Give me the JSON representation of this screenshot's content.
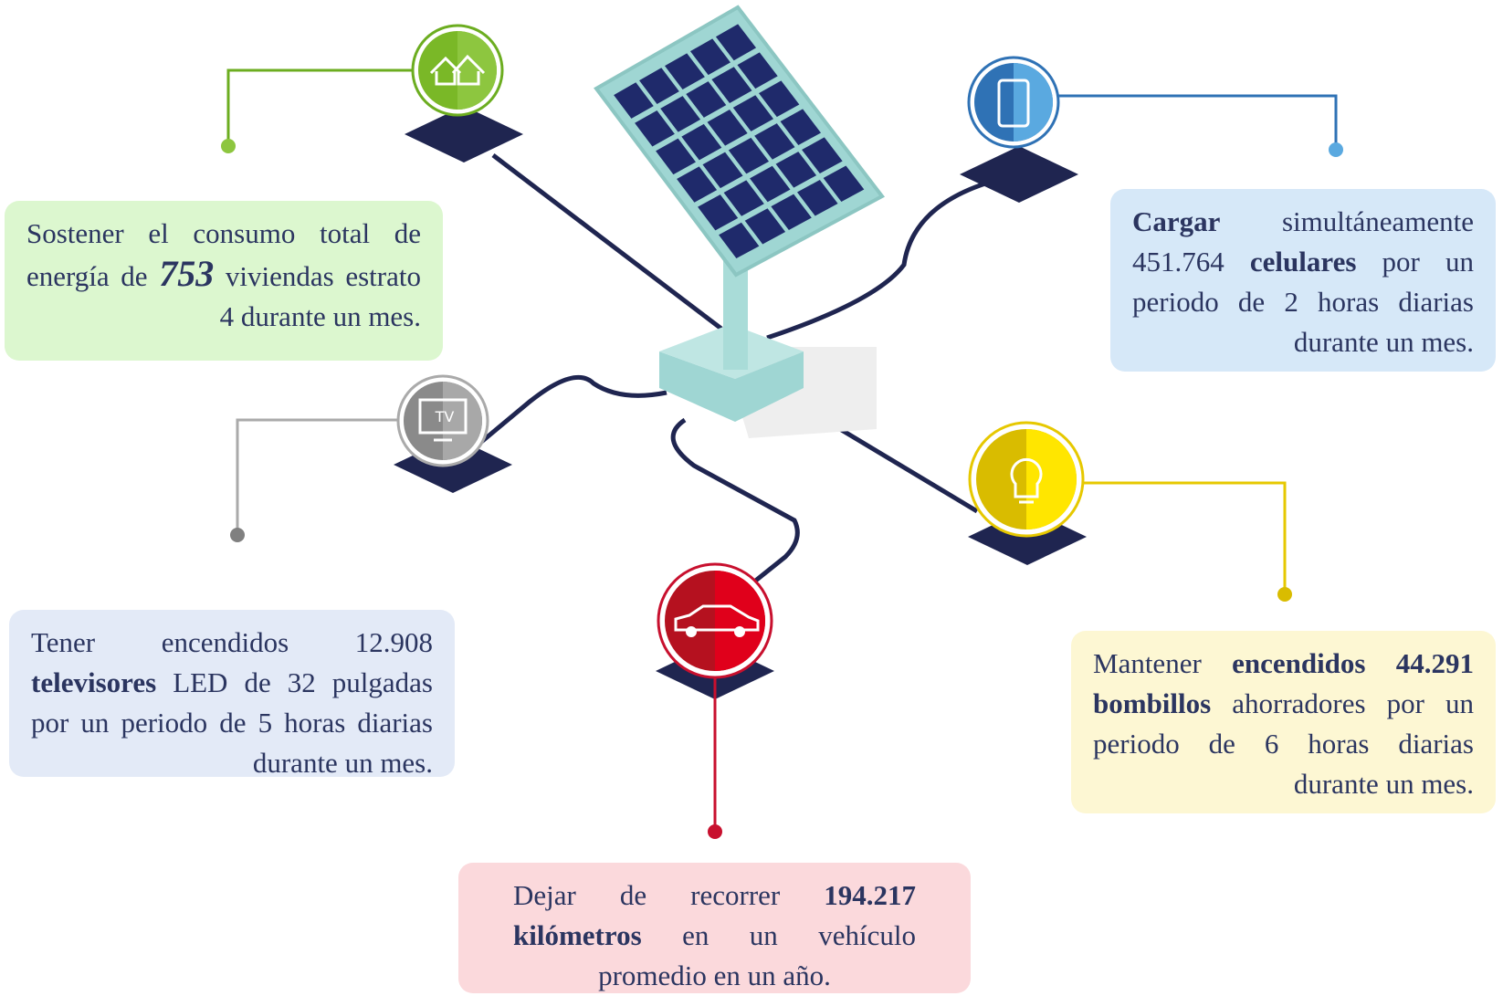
{
  "tv_icon_label": "TV",
  "cards": [
    {
      "parts": [
        {
          "text": "Sostener el consumo total de energía de ",
          "style": "normal"
        },
        {
          "text": "753",
          "style": "big"
        },
        {
          "text": " viviendas estrato 4 durante un mes.",
          "style": "normal"
        }
      ]
    },
    {
      "parts": [
        {
          "text": "Cargar",
          "style": "bold"
        },
        {
          "text": " simultáneamente 451.764 ",
          "style": "normal"
        },
        {
          "text": "celulares",
          "style": "bold"
        },
        {
          "text": " por un periodo de 2 horas diarias durante un mes.",
          "style": "normal"
        }
      ]
    },
    {
      "parts": [
        {
          "text": "Tener encendidos 12.908 ",
          "style": "normal"
        },
        {
          "text": "televisores",
          "style": "bold"
        },
        {
          "text": " LED de 32 pulgadas por un periodo de 5 horas diarias durante un mes.",
          "style": "normal"
        }
      ]
    },
    {
      "parts": [
        {
          "text": "Mantener ",
          "style": "normal"
        },
        {
          "text": "encendidos 44.291 bombillos",
          "style": "bold"
        },
        {
          "text": " ahorradores por un periodo de 6 horas diarias durante un mes.",
          "style": "normal"
        }
      ]
    },
    {
      "parts": [
        {
          "text": "Dejar de recorrer ",
          "style": "normal"
        },
        {
          "text": "194.217 kilómetros",
          "style": "bold"
        },
        {
          "text": " en un vehículo promedio en un año.",
          "style": "normal"
        }
      ]
    }
  ]
}
